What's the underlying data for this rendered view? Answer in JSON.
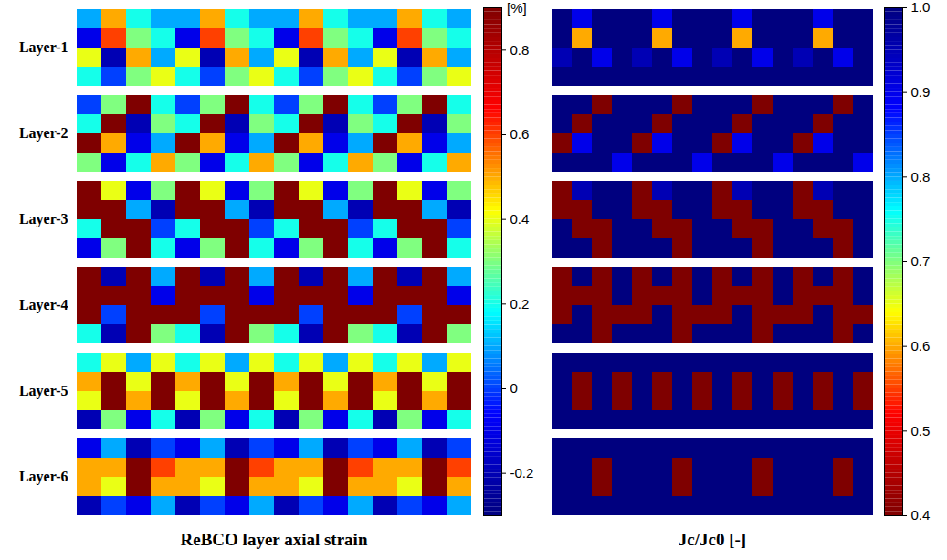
{
  "chart_data": [
    {
      "type": "heatmap",
      "title": "ReBCO layer axial strain",
      "series": [
        {
          "name": "Layer-1",
          "cells": [
            [
              0.1,
              0.5,
              0.2,
              0.1,
              0.1,
              0.5,
              0.2,
              0.1,
              0.1,
              0.5,
              0.2,
              0.1,
              0.1,
              0.5,
              0.2,
              0.1
            ],
            [
              -0.1,
              0.6,
              0.3,
              0.2,
              -0.1,
              0.6,
              0.3,
              0.2,
              -0.1,
              0.6,
              0.3,
              0.2,
              -0.1,
              0.6,
              0.3,
              0.2
            ],
            [
              0.4,
              -0.2,
              0.5,
              0.1,
              0.4,
              -0.2,
              0.5,
              0.1,
              0.4,
              -0.2,
              0.5,
              0.1,
              0.4,
              -0.2,
              0.5,
              0.1
            ],
            [
              0.2,
              0.0,
              0.3,
              0.4,
              0.2,
              0.0,
              0.3,
              0.4,
              0.2,
              0.0,
              0.3,
              0.4,
              0.2,
              0.0,
              0.3,
              0.4
            ]
          ]
        },
        {
          "name": "Layer-2",
          "cells": [
            [
              0.0,
              0.3,
              0.9,
              0.2,
              0.0,
              0.3,
              0.9,
              0.2,
              0.0,
              0.3,
              0.9,
              0.2,
              0.0,
              0.3,
              0.9,
              0.2
            ],
            [
              0.2,
              0.9,
              -0.2,
              0.3,
              0.2,
              0.9,
              -0.2,
              0.3,
              0.2,
              0.9,
              -0.2,
              0.3,
              0.2,
              0.9,
              -0.2,
              0.3
            ],
            [
              0.9,
              0.5,
              -0.1,
              0.1,
              0.9,
              0.5,
              -0.1,
              0.1,
              0.9,
              0.5,
              -0.1,
              0.1,
              0.9,
              0.5,
              -0.1,
              0.1
            ],
            [
              0.3,
              -0.1,
              0.2,
              0.5,
              0.3,
              -0.1,
              0.2,
              0.5,
              0.3,
              -0.1,
              0.2,
              0.5,
              0.3,
              -0.1,
              0.2,
              0.5
            ]
          ]
        },
        {
          "name": "Layer-3",
          "cells": [
            [
              0.9,
              0.4,
              -0.1,
              0.3,
              0.9,
              0.4,
              -0.1,
              0.3,
              0.9,
              0.4,
              -0.1,
              0.3,
              0.9,
              0.4,
              -0.1,
              0.3
            ],
            [
              0.9,
              0.9,
              0.1,
              -0.2,
              0.9,
              0.9,
              0.1,
              -0.2,
              0.9,
              0.9,
              0.1,
              -0.2,
              0.9,
              0.9,
              0.1,
              -0.2
            ],
            [
              0.2,
              0.9,
              0.9,
              0.0,
              0.2,
              0.9,
              0.9,
              0.0,
              0.2,
              0.9,
              0.9,
              0.0,
              0.2,
              0.9,
              0.9,
              0.0
            ],
            [
              -0.1,
              0.3,
              0.9,
              0.2,
              -0.1,
              0.3,
              0.9,
              0.2,
              -0.1,
              0.3,
              0.9,
              0.2,
              -0.1,
              0.3,
              0.9,
              0.2
            ]
          ]
        },
        {
          "name": "Layer-4",
          "cells": [
            [
              0.9,
              -0.2,
              0.9,
              0.1,
              0.9,
              -0.2,
              0.9,
              0.1,
              0.9,
              -0.2,
              0.9,
              0.1,
              0.9,
              -0.2,
              0.9,
              0.1
            ],
            [
              0.9,
              0.9,
              0.9,
              -0.1,
              0.9,
              0.9,
              0.9,
              -0.1,
              0.9,
              0.9,
              0.9,
              -0.1,
              0.9,
              0.9,
              0.9,
              -0.1
            ],
            [
              0.9,
              0.0,
              0.9,
              0.9,
              0.9,
              0.0,
              0.9,
              0.9,
              0.9,
              0.0,
              0.9,
              0.9,
              0.9,
              0.0,
              0.9,
              0.9
            ],
            [
              0.2,
              -0.2,
              0.9,
              0.3,
              0.2,
              -0.2,
              0.9,
              0.3,
              0.2,
              -0.2,
              0.9,
              0.3,
              0.2,
              -0.2,
              0.9,
              0.3
            ]
          ]
        },
        {
          "name": "Layer-5",
          "cells": [
            [
              0.2,
              0.4,
              0.1,
              0.4,
              0.2,
              0.4,
              0.1,
              0.4,
              0.2,
              0.4,
              0.1,
              0.4,
              0.2,
              0.4,
              0.1,
              0.4
            ],
            [
              0.5,
              0.9,
              0.4,
              0.9,
              0.5,
              0.9,
              0.4,
              0.9,
              0.5,
              0.9,
              0.4,
              0.9,
              0.5,
              0.9,
              0.4,
              0.9
            ],
            [
              0.4,
              0.9,
              0.5,
              0.9,
              0.4,
              0.9,
              0.5,
              0.9,
              0.4,
              0.9,
              0.5,
              0.9,
              0.4,
              0.9,
              0.5,
              0.9
            ],
            [
              -0.2,
              0.3,
              -0.1,
              0.2,
              -0.2,
              0.3,
              -0.1,
              0.2,
              -0.2,
              0.3,
              -0.1,
              0.2,
              -0.2,
              0.3,
              -0.1,
              0.2
            ]
          ]
        },
        {
          "name": "Layer-6",
          "cells": [
            [
              -0.1,
              0.1,
              -0.2,
              0.0,
              -0.1,
              0.1,
              -0.2,
              0.0,
              -0.1,
              0.1,
              -0.2,
              0.0,
              -0.1,
              0.1,
              -0.2,
              0.0
            ],
            [
              0.5,
              0.5,
              0.9,
              0.6,
              0.5,
              0.5,
              0.9,
              0.6,
              0.5,
              0.5,
              0.9,
              0.6,
              0.5,
              0.5,
              0.9,
              0.6
            ],
            [
              0.5,
              0.4,
              0.9,
              0.5,
              0.5,
              0.4,
              0.9,
              0.5,
              0.5,
              0.4,
              0.9,
              0.5,
              0.5,
              0.4,
              0.9,
              0.5
            ],
            [
              -0.2,
              0.0,
              -0.1,
              0.1,
              -0.2,
              0.0,
              -0.1,
              0.1,
              -0.2,
              0.0,
              -0.1,
              0.1,
              -0.2,
              0.0,
              -0.1,
              0.1
            ]
          ]
        }
      ],
      "colorbar": {
        "label": "[%]",
        "lim": [
          -0.3,
          0.9
        ],
        "ticks": [
          -0.2,
          0,
          0.2,
          0.4,
          0.6,
          0.8
        ],
        "colors": [
          "#00007f",
          "#0000ff",
          "#00ffff",
          "#ffff00",
          "#ff0000",
          "#7f0000"
        ]
      }
    },
    {
      "type": "heatmap",
      "title": "Jc/Jc0 [-]",
      "series": [
        {
          "cells": [
            [
              1,
              0.9,
              1,
              1,
              1,
              0.9,
              1,
              1,
              1,
              0.9,
              1,
              1,
              1,
              0.9,
              1,
              1
            ],
            [
              1,
              0.6,
              1,
              1,
              1,
              0.6,
              1,
              1,
              1,
              0.6,
              1,
              1,
              1,
              0.6,
              1,
              1
            ],
            [
              0.95,
              1,
              0.9,
              1,
              0.95,
              1,
              0.9,
              1,
              0.95,
              1,
              0.9,
              1,
              0.95,
              1,
              0.9,
              1
            ],
            [
              1,
              1,
              1,
              1,
              1,
              1,
              1,
              1,
              1,
              1,
              1,
              1,
              1,
              1,
              1,
              1
            ]
          ]
        },
        {
          "cells": [
            [
              1,
              1,
              0.4,
              1,
              1,
              1,
              0.4,
              1,
              1,
              1,
              0.4,
              1,
              1,
              1,
              0.4,
              1
            ],
            [
              1,
              0.4,
              1,
              1,
              1,
              0.4,
              1,
              1,
              1,
              0.4,
              1,
              1,
              1,
              0.4,
              1,
              1
            ],
            [
              0.4,
              0.9,
              1,
              1,
              0.4,
              0.9,
              1,
              1,
              0.4,
              0.9,
              1,
              1,
              0.4,
              0.9,
              1,
              1
            ],
            [
              1,
              1,
              1,
              0.9,
              1,
              1,
              1,
              0.9,
              1,
              1,
              1,
              0.9,
              1,
              1,
              1,
              0.9
            ]
          ]
        },
        {
          "cells": [
            [
              0.4,
              0.95,
              1,
              1,
              0.4,
              0.95,
              1,
              1,
              0.4,
              0.95,
              1,
              1,
              0.4,
              0.95,
              1,
              1
            ],
            [
              0.4,
              0.4,
              1,
              1,
              0.4,
              0.4,
              1,
              1,
              0.4,
              0.4,
              1,
              1,
              0.4,
              0.4,
              1,
              1
            ],
            [
              1,
              0.4,
              0.4,
              1,
              1,
              0.4,
              0.4,
              1,
              1,
              0.4,
              0.4,
              1,
              1,
              0.4,
              0.4,
              1
            ],
            [
              1,
              1,
              0.4,
              1,
              1,
              1,
              0.4,
              1,
              1,
              1,
              0.4,
              1,
              1,
              1,
              0.4,
              1
            ]
          ]
        },
        {
          "cells": [
            [
              0.4,
              1,
              0.4,
              1,
              0.4,
              1,
              0.4,
              1,
              0.4,
              1,
              0.4,
              1,
              0.4,
              1,
              0.4,
              1
            ],
            [
              0.4,
              0.4,
              0.4,
              1,
              0.4,
              0.4,
              0.4,
              1,
              0.4,
              0.4,
              0.4,
              1,
              0.4,
              0.4,
              0.4,
              1
            ],
            [
              0.4,
              1,
              0.4,
              0.4,
              0.4,
              1,
              0.4,
              0.4,
              0.4,
              1,
              0.4,
              0.4,
              0.4,
              1,
              0.4,
              0.4
            ],
            [
              1,
              1,
              0.4,
              1,
              1,
              1,
              0.4,
              1,
              1,
              1,
              0.4,
              1,
              1,
              1,
              0.4,
              1
            ]
          ]
        },
        {
          "cells": [
            [
              1,
              1,
              1,
              1,
              1,
              1,
              1,
              1,
              1,
              1,
              1,
              1,
              1,
              1,
              1,
              1
            ],
            [
              1,
              0.4,
              1,
              0.4,
              1,
              0.4,
              1,
              0.4,
              1,
              0.4,
              1,
              0.4,
              1,
              0.4,
              1,
              0.4
            ],
            [
              1,
              0.4,
              1,
              0.4,
              1,
              0.4,
              1,
              0.4,
              1,
              0.4,
              1,
              0.4,
              1,
              0.4,
              1,
              0.4
            ],
            [
              1,
              1,
              1,
              1,
              1,
              1,
              1,
              1,
              1,
              1,
              1,
              1,
              1,
              1,
              1,
              1
            ]
          ]
        },
        {
          "cells": [
            [
              1,
              1,
              1,
              1,
              1,
              1,
              1,
              1,
              1,
              1,
              1,
              1,
              1,
              1,
              1,
              1
            ],
            [
              1,
              1,
              0.4,
              1,
              1,
              1,
              0.4,
              1,
              1,
              1,
              0.4,
              1,
              1,
              1,
              0.4,
              1
            ],
            [
              1,
              1,
              0.4,
              1,
              1,
              1,
              0.4,
              1,
              1,
              1,
              0.4,
              1,
              1,
              1,
              0.4,
              1
            ],
            [
              1,
              1,
              1,
              1,
              1,
              1,
              1,
              1,
              1,
              1,
              1,
              1,
              1,
              1,
              1,
              1
            ]
          ]
        }
      ],
      "colorbar": {
        "lim": [
          0.4,
          1
        ],
        "ticks": [
          0.4,
          0.5,
          0.6,
          0.7,
          0.8,
          0.9,
          {
            "value": 1,
            "label": "1.0"
          }
        ],
        "colors": [
          "#7f0000",
          "#ff0000",
          "#ffff00",
          "#00ffff",
          "#0000ff",
          "#00007f"
        ]
      }
    }
  ]
}
